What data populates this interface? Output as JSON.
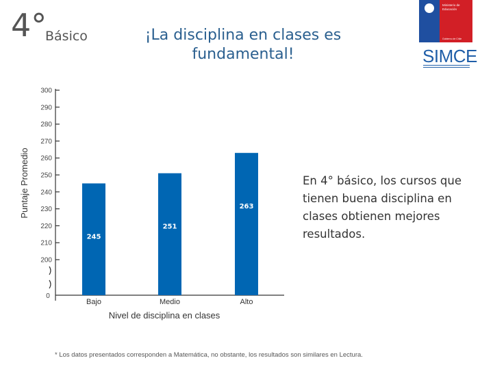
{
  "header": {
    "grade_number": "4°",
    "grade_label": "Básico",
    "title_line1": "¡La disciplina en clases es",
    "title_line2": "fundamental!",
    "logo_text": "SIMCE",
    "ministry_line1": "Ministerio de",
    "ministry_line2": "Educación",
    "government": "Gobierno de Chile"
  },
  "description": "En 4° básico, los cursos que tienen buena disciplina en clases obtienen mejores resultados.",
  "footnote": "* Los datos presentados corresponden a Matemática, no obstante, los resultados son similares en Lectura.",
  "colors": {
    "bar": "#0066b3",
    "title": "#2a5f8f",
    "logo_blue": "#1f5ea8",
    "logo_red": "#d21f26"
  },
  "chart_data": {
    "type": "bar",
    "categories": [
      "Bajo",
      "Medio",
      "Alto"
    ],
    "values": [
      245,
      251,
      263
    ],
    "xlabel": "Nivel de disciplina en clases",
    "ylabel": "Puntaje Promedio",
    "yticks": [
      "300",
      "290",
      "280",
      "270",
      "260",
      "250",
      "240",
      "230",
      "220",
      "210",
      "200"
    ],
    "ybase": "0",
    "ylim": [
      200,
      300
    ],
    "axis_break": true,
    "grid": false,
    "data_labels": [
      "245",
      "251",
      "263"
    ]
  }
}
